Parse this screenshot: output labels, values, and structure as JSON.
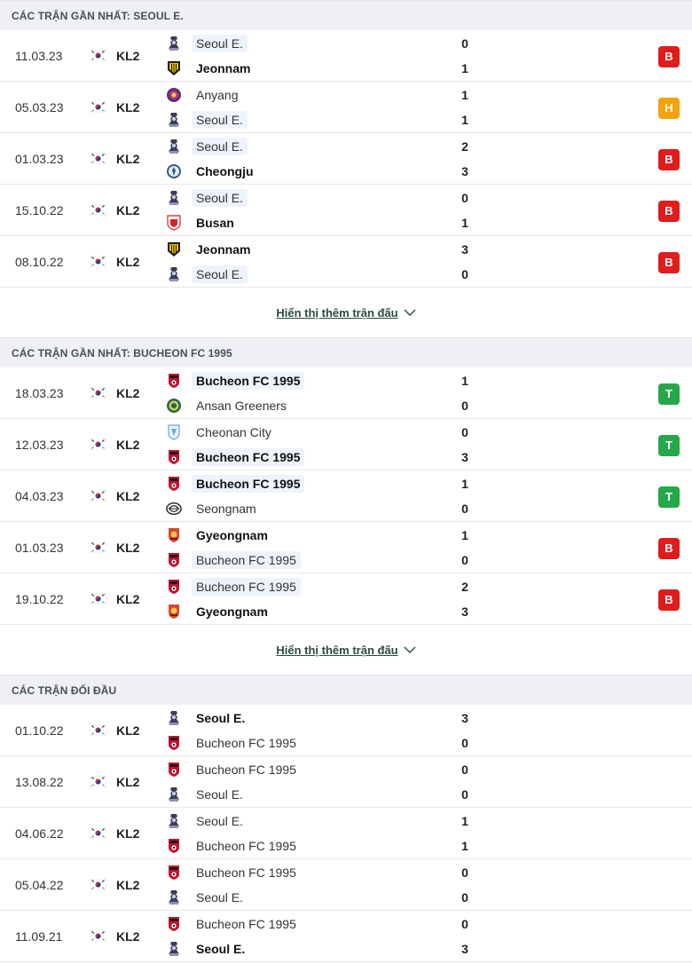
{
  "sections": [
    {
      "title": "CÁC TRẬN GẦN NHẤT: SEOUL E.",
      "show_more": "Hiển thị thêm trận đấu",
      "matches": [
        {
          "date": "11.03.23",
          "league": "KL2",
          "home": {
            "name": "Seoul E.",
            "logo": "seoul-e-logo",
            "score": "0"
          },
          "away": {
            "name": "Jeonnam",
            "logo": "jeonnam-logo",
            "score": "1"
          },
          "result": "B",
          "hl": 1,
          "win": 2
        },
        {
          "date": "05.03.23",
          "league": "KL2",
          "home": {
            "name": "Anyang",
            "logo": "anyang-logo",
            "score": "1"
          },
          "away": {
            "name": "Seoul E.",
            "logo": "seoul-e-logo",
            "score": "1"
          },
          "result": "H",
          "hl": 2,
          "win": 0
        },
        {
          "date": "01.03.23",
          "league": "KL2",
          "home": {
            "name": "Seoul E.",
            "logo": "seoul-e-logo",
            "score": "2"
          },
          "away": {
            "name": "Cheongju",
            "logo": "cheongju-logo",
            "score": "3"
          },
          "result": "B",
          "hl": 1,
          "win": 2
        },
        {
          "date": "15.10.22",
          "league": "KL2",
          "home": {
            "name": "Seoul E.",
            "logo": "seoul-e-logo",
            "score": "0"
          },
          "away": {
            "name": "Busan",
            "logo": "busan-logo",
            "score": "1"
          },
          "result": "B",
          "hl": 1,
          "win": 2
        },
        {
          "date": "08.10.22",
          "league": "KL2",
          "home": {
            "name": "Jeonnam",
            "logo": "jeonnam-logo",
            "score": "3"
          },
          "away": {
            "name": "Seoul E.",
            "logo": "seoul-e-logo",
            "score": "0"
          },
          "result": "B",
          "hl": 2,
          "win": 1
        }
      ]
    },
    {
      "title": "CÁC TRẬN GẦN NHẤT: BUCHEON FC 1995",
      "show_more": "Hiển thị thêm trận đấu",
      "matches": [
        {
          "date": "18.03.23",
          "league": "KL2",
          "home": {
            "name": "Bucheon FC 1995",
            "logo": "bucheon-logo",
            "score": "1"
          },
          "away": {
            "name": "Ansan Greeners",
            "logo": "ansan-logo",
            "score": "0"
          },
          "result": "T",
          "hl": 1,
          "win": 1
        },
        {
          "date": "12.03.23",
          "league": "KL2",
          "home": {
            "name": "Cheonan City",
            "logo": "cheonan-logo",
            "score": "0"
          },
          "away": {
            "name": "Bucheon FC 1995",
            "logo": "bucheon-logo",
            "score": "3"
          },
          "result": "T",
          "hl": 2,
          "win": 2
        },
        {
          "date": "04.03.23",
          "league": "KL2",
          "home": {
            "name": "Bucheon FC 1995",
            "logo": "bucheon-logo",
            "score": "1"
          },
          "away": {
            "name": "Seongnam",
            "logo": "seongnam-logo",
            "score": "0"
          },
          "result": "T",
          "hl": 1,
          "win": 1
        },
        {
          "date": "01.03.23",
          "league": "KL2",
          "home": {
            "name": "Gyeongnam",
            "logo": "gyeongnam-logo",
            "score": "1"
          },
          "away": {
            "name": "Bucheon FC 1995",
            "logo": "bucheon-logo",
            "score": "0"
          },
          "result": "B",
          "hl": 2,
          "win": 1
        },
        {
          "date": "19.10.22",
          "league": "KL2",
          "home": {
            "name": "Bucheon FC 1995",
            "logo": "bucheon-logo",
            "score": "2"
          },
          "away": {
            "name": "Gyeongnam",
            "logo": "gyeongnam-logo",
            "score": "3"
          },
          "result": "B",
          "hl": 1,
          "win": 2
        }
      ]
    },
    {
      "title": "CÁC TRẬN ĐỐI ĐẦU",
      "matches": [
        {
          "date": "01.10.22",
          "league": "KL2",
          "home": {
            "name": "Seoul E.",
            "logo": "seoul-e-logo",
            "score": "3"
          },
          "away": {
            "name": "Bucheon FC 1995",
            "logo": "bucheon-logo",
            "score": "0"
          },
          "result": "",
          "hl": 0,
          "win": 1
        },
        {
          "date": "13.08.22",
          "league": "KL2",
          "home": {
            "name": "Bucheon FC 1995",
            "logo": "bucheon-logo",
            "score": "0"
          },
          "away": {
            "name": "Seoul E.",
            "logo": "seoul-e-logo",
            "score": "0"
          },
          "result": "",
          "hl": 0,
          "win": 0
        },
        {
          "date": "04.06.22",
          "league": "KL2",
          "home": {
            "name": "Seoul E.",
            "logo": "seoul-e-logo",
            "score": "1"
          },
          "away": {
            "name": "Bucheon FC 1995",
            "logo": "bucheon-logo",
            "score": "1"
          },
          "result": "",
          "hl": 0,
          "win": 0
        },
        {
          "date": "05.04.22",
          "league": "KL2",
          "home": {
            "name": "Bucheon FC 1995",
            "logo": "bucheon-logo",
            "score": "0"
          },
          "away": {
            "name": "Seoul E.",
            "logo": "seoul-e-logo",
            "score": "0"
          },
          "result": "",
          "hl": 0,
          "win": 0
        },
        {
          "date": "11.09.21",
          "league": "KL2",
          "home": {
            "name": "Bucheon FC 1995",
            "logo": "bucheon-logo",
            "score": "0"
          },
          "away": {
            "name": "Seoul E.",
            "logo": "seoul-e-logo",
            "score": "3"
          },
          "result": "",
          "hl": 0,
          "win": 2
        }
      ]
    }
  ],
  "flag_icon": "south-korea-flag-icon",
  "colors": {
    "loss": "#e01c1c",
    "draw": "#f4a30a",
    "win": "#25a84a",
    "highlight": "#eef3fb"
  }
}
